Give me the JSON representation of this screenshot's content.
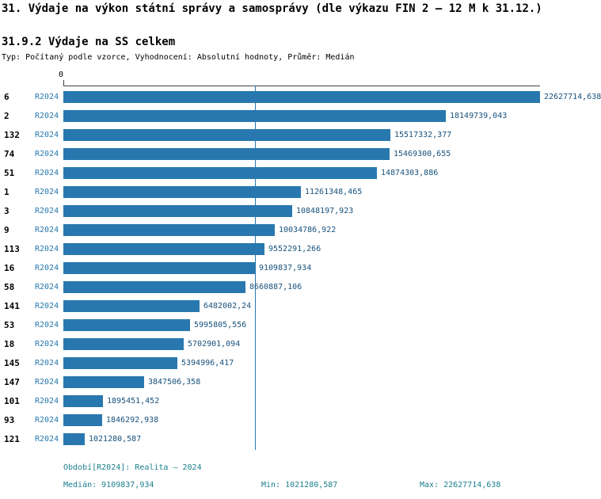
{
  "title": "31. Výdaje na výkon státní správy a samosprávy (dle výkazu FIN 2 – 12 M k 31.12.)",
  "subtitle": "31.9.2 Výdaje na SS celkem",
  "meta": "Typ: Počítaný podle vzorce, Vyhodnocení: Absolutní hodnoty, Průměr: Medián",
  "axis": {
    "zero_label": "0"
  },
  "chart_data": {
    "type": "bar",
    "orientation": "horizontal",
    "series_label": "R2024",
    "xlim": [
      0,
      22627714.638
    ],
    "max_value": 22627714.638,
    "median_value": 9109837.934,
    "min_value": 1021280.587,
    "rows": [
      {
        "id": "6",
        "value": 22627714.638,
        "label": "22627714,638"
      },
      {
        "id": "2",
        "value": 18149739.043,
        "label": "18149739,043"
      },
      {
        "id": "132",
        "value": 15517332.377,
        "label": "15517332,377"
      },
      {
        "id": "74",
        "value": 15469300.655,
        "label": "15469300,655"
      },
      {
        "id": "51",
        "value": 14874303.886,
        "label": "14874303,886"
      },
      {
        "id": "1",
        "value": 11261348.465,
        "label": "11261348,465"
      },
      {
        "id": "3",
        "value": 10848197.923,
        "label": "10848197,923"
      },
      {
        "id": "9",
        "value": 10034786.922,
        "label": "10034786,922"
      },
      {
        "id": "113",
        "value": 9552291.266,
        "label": "9552291,266"
      },
      {
        "id": "16",
        "value": 9109837.934,
        "label": "9109837,934"
      },
      {
        "id": "58",
        "value": 8660887.106,
        "label": "8660887,106"
      },
      {
        "id": "141",
        "value": 6482002.24,
        "label": "6482002,24"
      },
      {
        "id": "53",
        "value": 5995805.556,
        "label": "5995805,556"
      },
      {
        "id": "18",
        "value": 5702901.094,
        "label": "5702901,094"
      },
      {
        "id": "145",
        "value": 5394996.417,
        "label": "5394996,417"
      },
      {
        "id": "147",
        "value": 3847506.358,
        "label": "3847506,358"
      },
      {
        "id": "101",
        "value": 1895451.452,
        "label": "1895451,452"
      },
      {
        "id": "93",
        "value": 1846292.938,
        "label": "1846292,938"
      },
      {
        "id": "121",
        "value": 1021280.587,
        "label": "1021280,587"
      }
    ]
  },
  "footer": {
    "period": "Období[R2024]: Realita – 2024",
    "median": "Medián: 9109837,934",
    "min": "Min: 1021280,587",
    "max": "Max: 22627714,638"
  },
  "colors": {
    "bar": "#2878af",
    "series_label": "#2878af",
    "value_label": "#17517c",
    "footer_text": "#1a7f8c",
    "median_line": "#2878af",
    "axis": "#444444"
  }
}
